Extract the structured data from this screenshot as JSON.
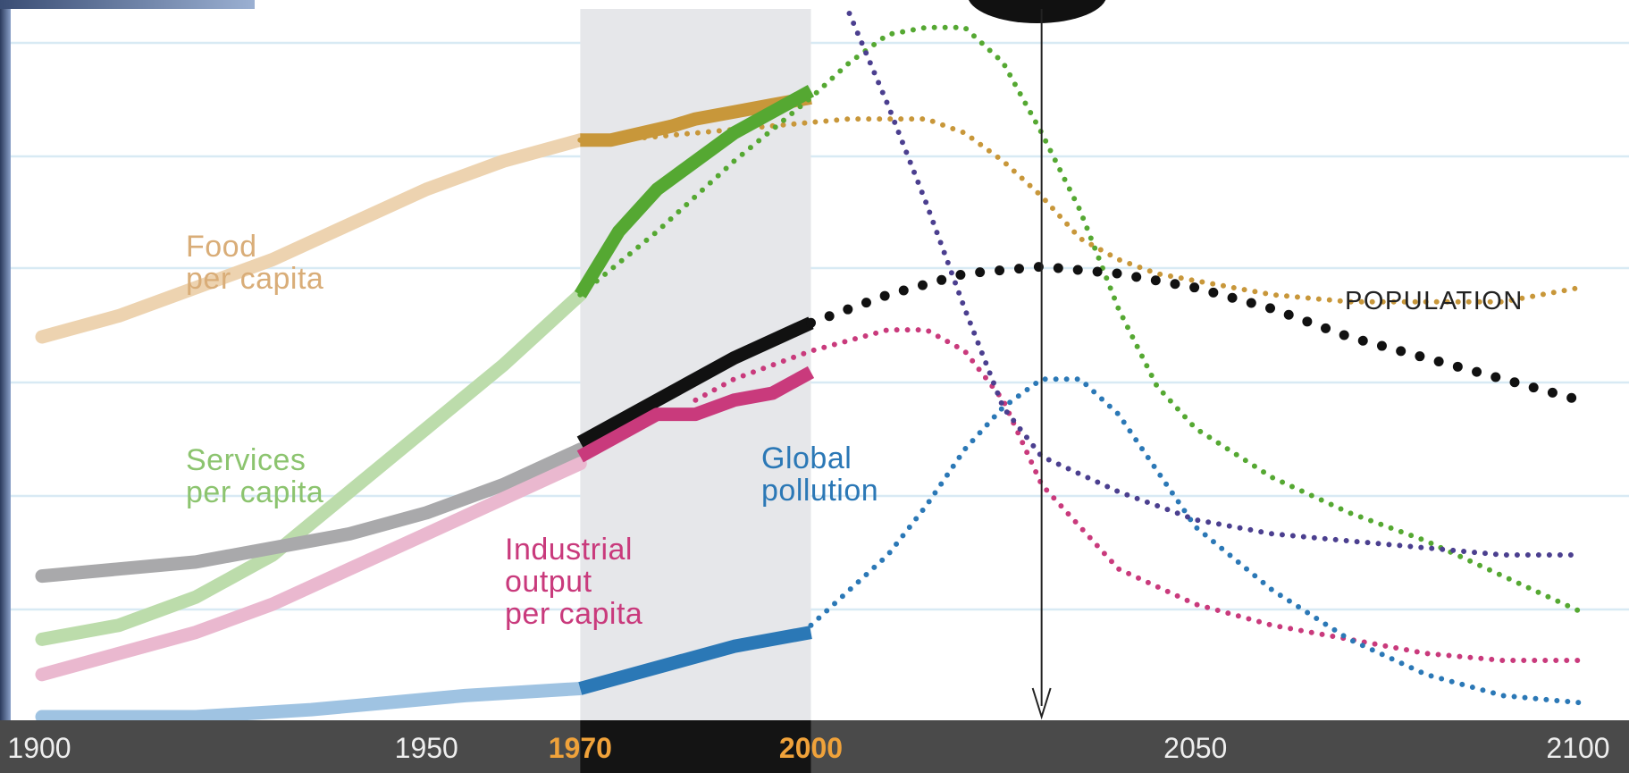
{
  "chart_data": {
    "type": "line",
    "xlim": [
      1900,
      2100
    ],
    "x_ticks": [
      {
        "label": "1900",
        "value": 1900,
        "highlight": false
      },
      {
        "label": "1950",
        "value": 1950,
        "highlight": false
      },
      {
        "label": "1970",
        "value": 1970,
        "highlight": true
      },
      {
        "label": "2000",
        "value": 2000,
        "highlight": true
      },
      {
        "label": "2050",
        "value": 2050,
        "highlight": false
      },
      {
        "label": "2100",
        "value": 2100,
        "highlight": false
      }
    ],
    "highlight_band": {
      "from": 1970,
      "to": 2000
    },
    "marker_year": 2030,
    "grid": true,
    "colors": {
      "axis_bar": "#4a4a4a",
      "axis_band": "#141414",
      "tick_text": "#eeeeee",
      "tick_highlight": "#f0a23a",
      "band": "#e6e7ea",
      "grid": "#d8eaf4",
      "purple": "#4b3f8f"
    },
    "series": [
      {
        "key": "food",
        "name": "Food\nper capita",
        "color": "#c8973a",
        "light": "#edd3b0",
        "pre": [
          [
            1900,
            0.54
          ],
          [
            1910,
            0.57
          ],
          [
            1920,
            0.61
          ],
          [
            1930,
            0.65
          ],
          [
            1940,
            0.7
          ],
          [
            1950,
            0.75
          ],
          [
            1960,
            0.79
          ],
          [
            1970,
            0.82
          ]
        ],
        "obs": [
          [
            1970,
            0.82
          ],
          [
            1974,
            0.82
          ],
          [
            1978,
            0.83
          ],
          [
            1982,
            0.84
          ],
          [
            1985,
            0.85
          ],
          [
            1990,
            0.86
          ],
          [
            1995,
            0.87
          ],
          [
            2000,
            0.88
          ]
        ],
        "proj": [
          [
            1970,
            0.82
          ],
          [
            1975,
            0.82
          ],
          [
            1985,
            0.83
          ],
          [
            1995,
            0.84
          ],
          [
            2005,
            0.85
          ],
          [
            2015,
            0.85
          ],
          [
            2020,
            0.83
          ],
          [
            2025,
            0.79
          ],
          [
            2030,
            0.74
          ],
          [
            2035,
            0.68
          ],
          [
            2040,
            0.65
          ],
          [
            2045,
            0.63
          ],
          [
            2050,
            0.62
          ],
          [
            2060,
            0.6
          ],
          [
            2070,
            0.59
          ],
          [
            2080,
            0.59
          ],
          [
            2090,
            0.59
          ],
          [
            2100,
            0.61
          ]
        ]
      },
      {
        "key": "services",
        "name": "Services\nper capita",
        "color": "#55a832",
        "light": "#bcdcab",
        "pre": [
          [
            1900,
            0.11
          ],
          [
            1910,
            0.13
          ],
          [
            1920,
            0.17
          ],
          [
            1930,
            0.23
          ],
          [
            1940,
            0.32
          ],
          [
            1950,
            0.41
          ],
          [
            1960,
            0.5
          ],
          [
            1970,
            0.6
          ]
        ],
        "obs": [
          [
            1970,
            0.6
          ],
          [
            1975,
            0.69
          ],
          [
            1980,
            0.75
          ],
          [
            1985,
            0.79
          ],
          [
            1990,
            0.83
          ],
          [
            1995,
            0.86
          ],
          [
            2000,
            0.89
          ]
        ],
        "proj": [
          [
            1970,
            0.6
          ],
          [
            1980,
            0.69
          ],
          [
            1990,
            0.79
          ],
          [
            2000,
            0.88
          ],
          [
            2005,
            0.93
          ],
          [
            2010,
            0.97
          ],
          [
            2015,
            0.98
          ],
          [
            2020,
            0.98
          ],
          [
            2025,
            0.93
          ],
          [
            2030,
            0.83
          ],
          [
            2035,
            0.72
          ],
          [
            2040,
            0.58
          ],
          [
            2045,
            0.47
          ],
          [
            2050,
            0.41
          ],
          [
            2060,
            0.34
          ],
          [
            2070,
            0.29
          ],
          [
            2080,
            0.25
          ],
          [
            2090,
            0.2
          ],
          [
            2100,
            0.15
          ]
        ]
      },
      {
        "key": "population",
        "name": "",
        "color": "#111111",
        "light": "#a9a9ab",
        "pre": [
          [
            1900,
            0.2
          ],
          [
            1910,
            0.21
          ],
          [
            1920,
            0.22
          ],
          [
            1930,
            0.24
          ],
          [
            1940,
            0.26
          ],
          [
            1950,
            0.29
          ],
          [
            1960,
            0.33
          ],
          [
            1970,
            0.38
          ]
        ],
        "obs": [
          [
            1970,
            0.39
          ],
          [
            1980,
            0.45
          ],
          [
            1990,
            0.51
          ],
          [
            2000,
            0.56
          ]
        ],
        "proj": [
          [
            2000,
            0.56
          ],
          [
            2010,
            0.6
          ],
          [
            2020,
            0.63
          ],
          [
            2030,
            0.64
          ],
          [
            2040,
            0.63
          ],
          [
            2050,
            0.61
          ],
          [
            2060,
            0.58
          ],
          [
            2070,
            0.54
          ],
          [
            2080,
            0.51
          ],
          [
            2090,
            0.48
          ],
          [
            2100,
            0.45
          ]
        ],
        "label": "POPULATION"
      },
      {
        "key": "industrial",
        "name": "Industrial\noutput\nper capita",
        "color": "#c93a7c",
        "light": "#eab8cf",
        "pre": [
          [
            1900,
            0.06
          ],
          [
            1910,
            0.09
          ],
          [
            1920,
            0.12
          ],
          [
            1930,
            0.16
          ],
          [
            1940,
            0.21
          ],
          [
            1950,
            0.26
          ],
          [
            1960,
            0.31
          ],
          [
            1970,
            0.36
          ]
        ],
        "obs": [
          [
            1970,
            0.37
          ],
          [
            1975,
            0.4
          ],
          [
            1980,
            0.43
          ],
          [
            1985,
            0.43
          ],
          [
            1990,
            0.45
          ],
          [
            1995,
            0.46
          ],
          [
            2000,
            0.49
          ]
        ],
        "proj": [
          [
            1985,
            0.45
          ],
          [
            1990,
            0.48
          ],
          [
            2000,
            0.52
          ],
          [
            2010,
            0.55
          ],
          [
            2015,
            0.55
          ],
          [
            2020,
            0.52
          ],
          [
            2025,
            0.45
          ],
          [
            2030,
            0.33
          ],
          [
            2035,
            0.27
          ],
          [
            2040,
            0.21
          ],
          [
            2050,
            0.16
          ],
          [
            2060,
            0.13
          ],
          [
            2070,
            0.11
          ],
          [
            2080,
            0.09
          ],
          [
            2090,
            0.08
          ],
          [
            2100,
            0.08
          ]
        ]
      },
      {
        "key": "pollution",
        "name": "Global\npollution",
        "color": "#2b78b6",
        "light": "#9fc3e2",
        "pre": [
          [
            1900,
            0.0
          ],
          [
            1920,
            0.0
          ],
          [
            1935,
            0.01
          ],
          [
            1945,
            0.02
          ],
          [
            1955,
            0.03
          ],
          [
            1970,
            0.04
          ]
        ],
        "obs": [
          [
            1970,
            0.04
          ],
          [
            1980,
            0.07
          ],
          [
            1990,
            0.1
          ],
          [
            2000,
            0.12
          ]
        ],
        "proj": [
          [
            2000,
            0.13
          ],
          [
            2005,
            0.18
          ],
          [
            2010,
            0.23
          ],
          [
            2015,
            0.3
          ],
          [
            2020,
            0.38
          ],
          [
            2025,
            0.44
          ],
          [
            2030,
            0.48
          ],
          [
            2035,
            0.48
          ],
          [
            2040,
            0.43
          ],
          [
            2045,
            0.35
          ],
          [
            2050,
            0.27
          ],
          [
            2060,
            0.18
          ],
          [
            2070,
            0.11
          ],
          [
            2080,
            0.06
          ],
          [
            2090,
            0.03
          ],
          [
            2100,
            0.02
          ]
        ]
      },
      {
        "key": "resources",
        "name": "",
        "color": "#4b3f8f",
        "light": "#4b3f8f",
        "pre": [],
        "obs": [],
        "proj": [
          [
            2005,
            1.0
          ],
          [
            2010,
            0.87
          ],
          [
            2015,
            0.73
          ],
          [
            2020,
            0.58
          ],
          [
            2025,
            0.44
          ],
          [
            2030,
            0.37
          ],
          [
            2040,
            0.32
          ],
          [
            2050,
            0.28
          ],
          [
            2060,
            0.26
          ],
          [
            2070,
            0.25
          ],
          [
            2080,
            0.24
          ],
          [
            2090,
            0.23
          ],
          [
            2100,
            0.23
          ]
        ]
      }
    ]
  }
}
